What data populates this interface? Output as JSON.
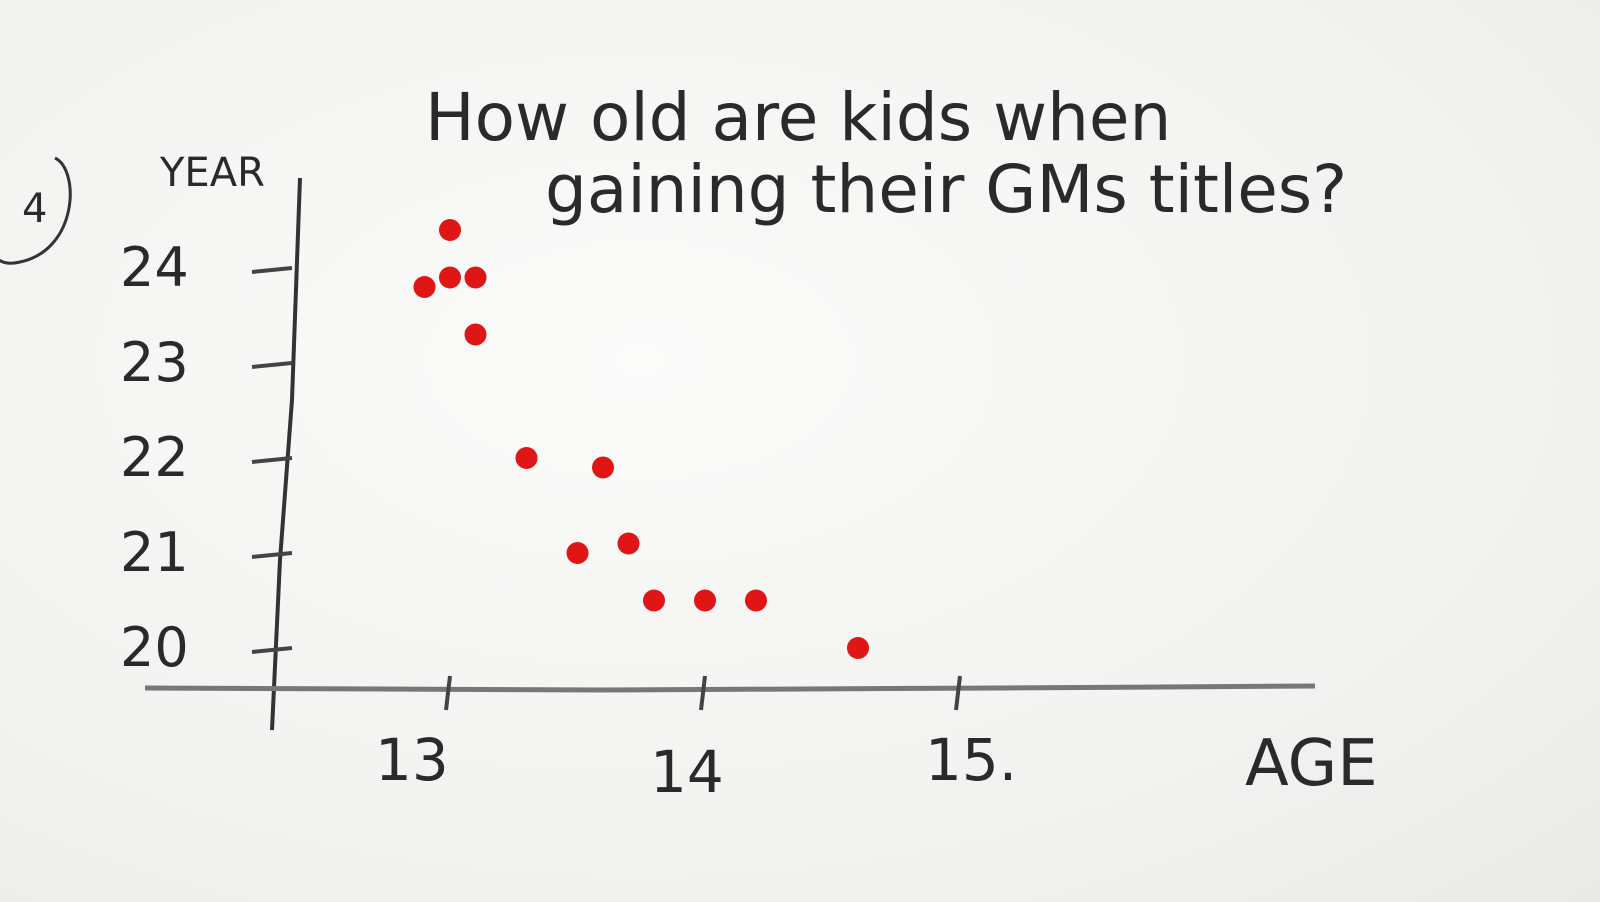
{
  "chart_data": {
    "type": "scatter",
    "title_line1": "How old are kids when",
    "title_line2": "gaining their GMs titles?",
    "question_number": "4",
    "xlabel": "AGE",
    "ylabel": "YEAR",
    "x_ticks": [
      "13",
      "14",
      "15."
    ],
    "y_ticks": [
      "24",
      "23",
      "22",
      "21",
      "20"
    ],
    "point_color": "#e01515",
    "points": [
      {
        "x": 12.9,
        "y": 23.8
      },
      {
        "x": 13.0,
        "y": 24.4
      },
      {
        "x": 13.0,
        "y": 23.9
      },
      {
        "x": 13.1,
        "y": 23.9
      },
      {
        "x": 13.1,
        "y": 23.3
      },
      {
        "x": 13.3,
        "y": 22.0
      },
      {
        "x": 13.5,
        "y": 21.0
      },
      {
        "x": 13.6,
        "y": 21.9
      },
      {
        "x": 13.7,
        "y": 21.1
      },
      {
        "x": 13.8,
        "y": 20.5
      },
      {
        "x": 14.0,
        "y": 20.5
      },
      {
        "x": 14.2,
        "y": 20.5
      },
      {
        "x": 14.6,
        "y": 20.0
      }
    ]
  }
}
